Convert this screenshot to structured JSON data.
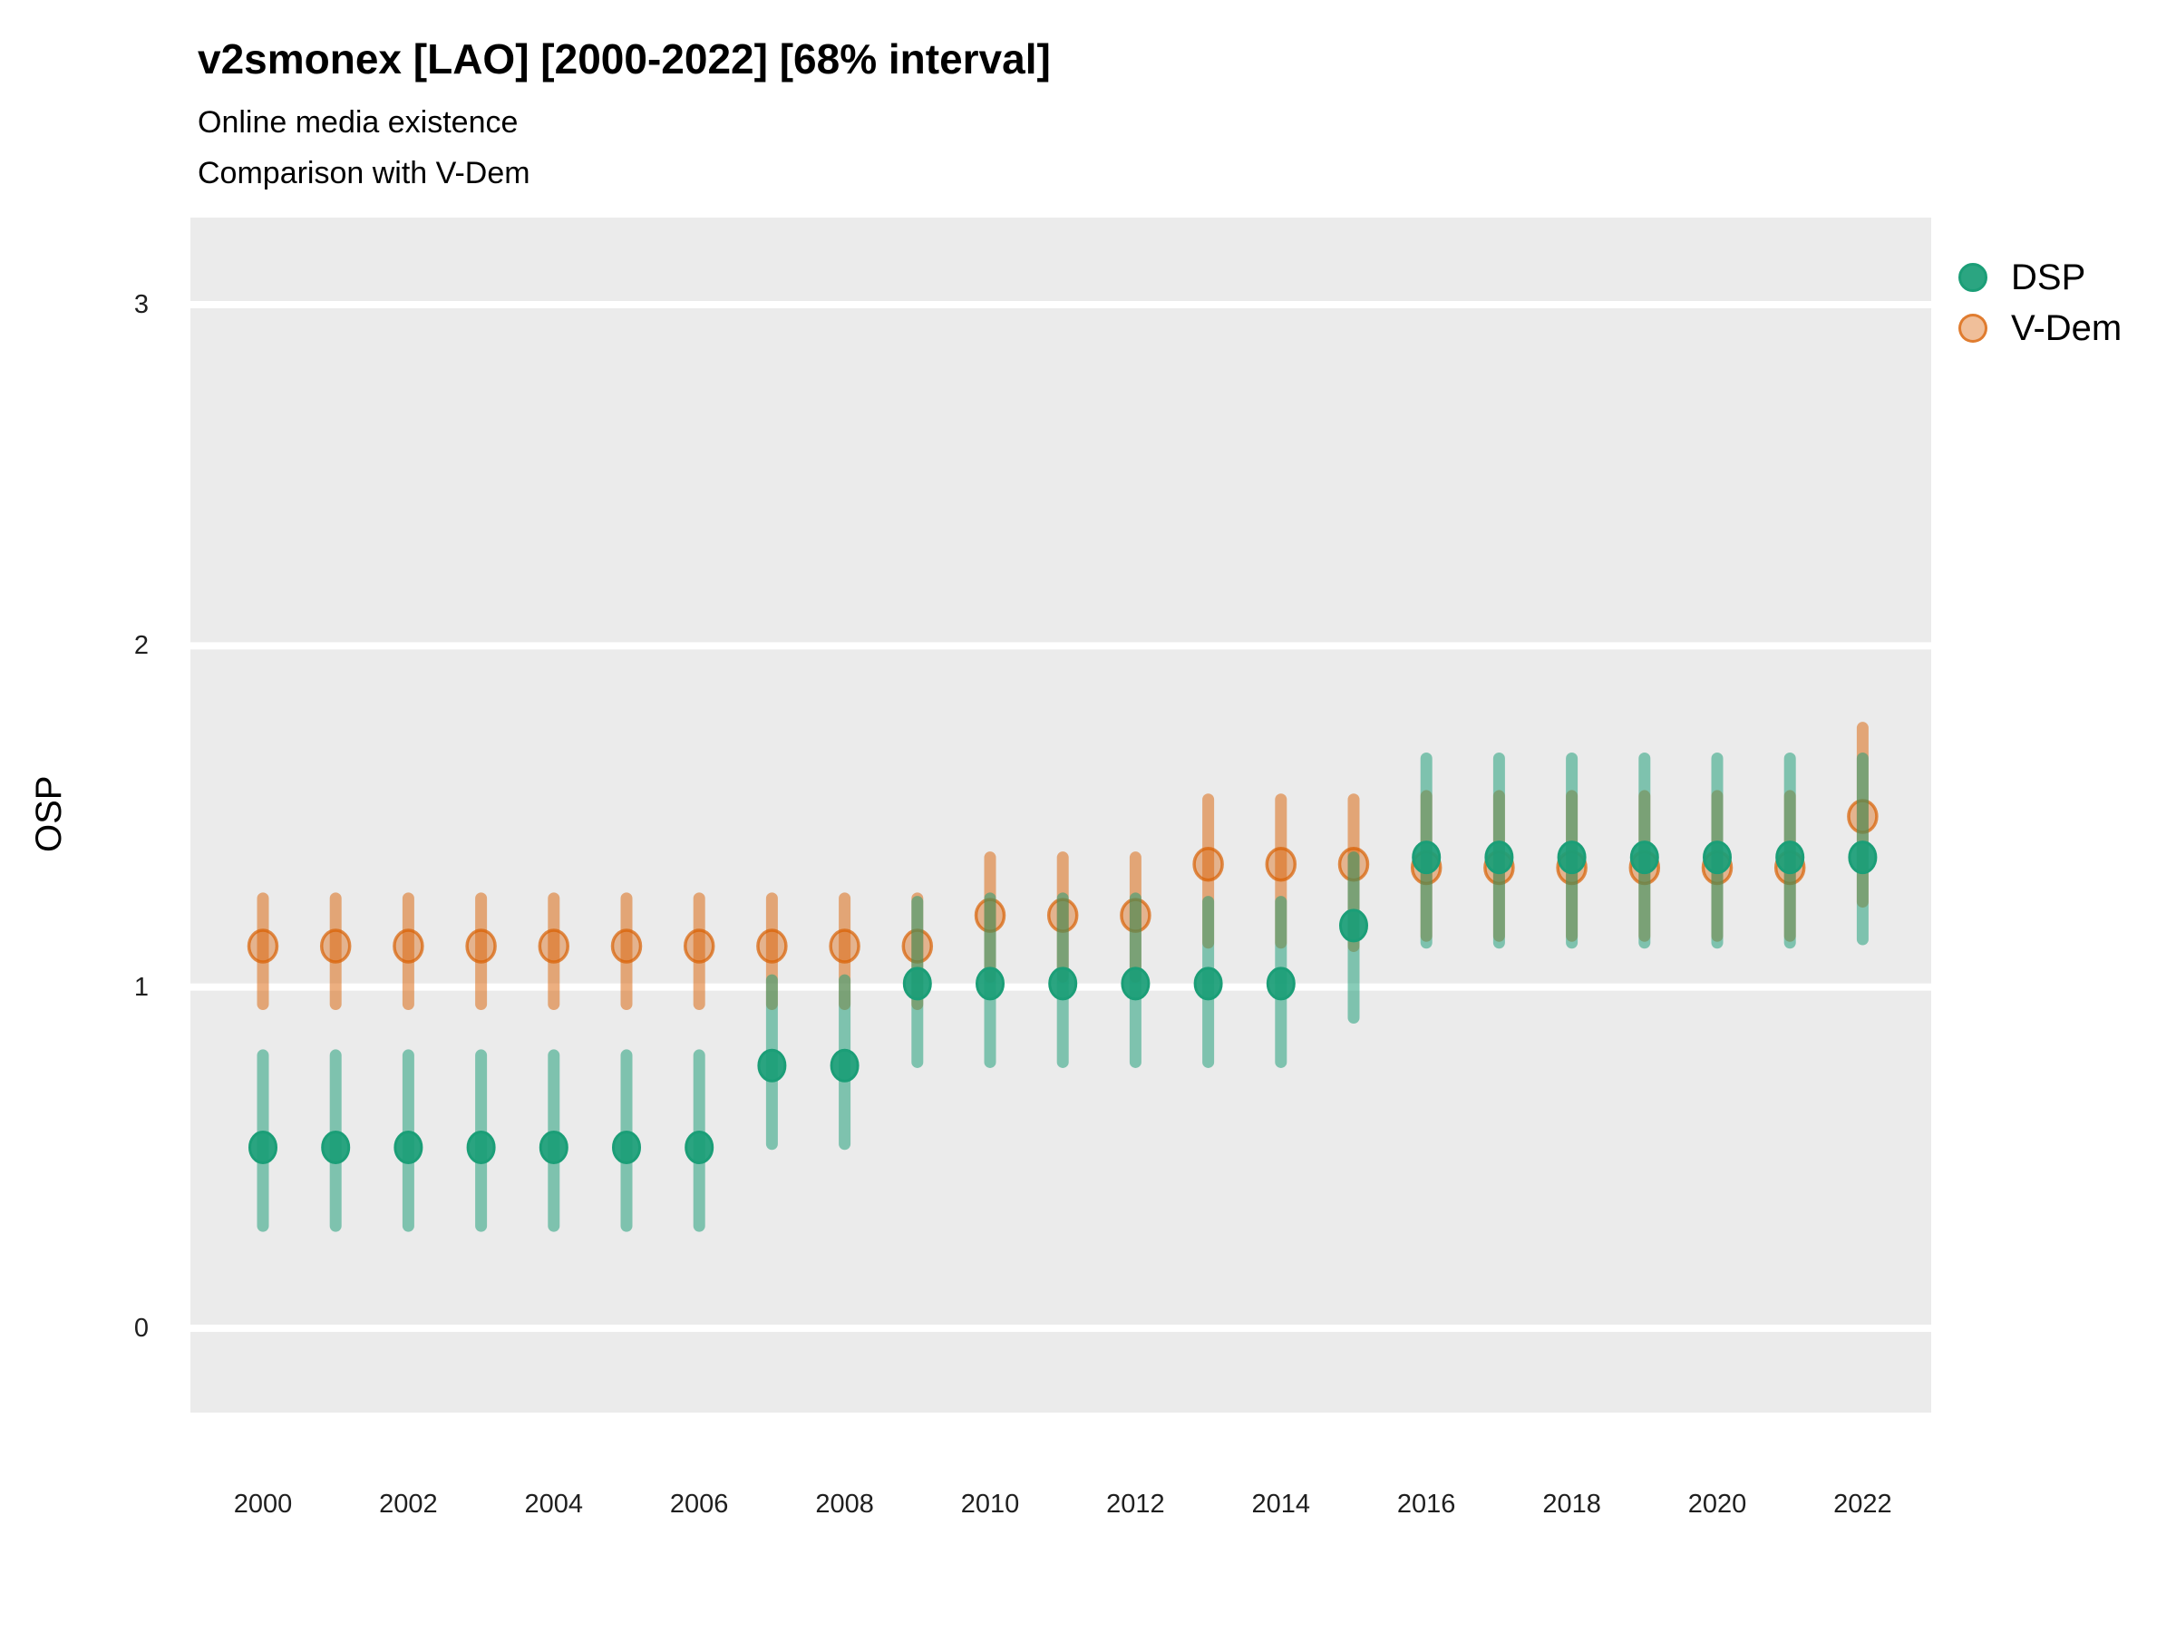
{
  "chart_data": {
    "type": "scatter",
    "variant": "pointrange-errorbar",
    "title": "v2smonex [LAO] [2000-2022] [68% interval]",
    "subtitle1": "Online media existence",
    "subtitle2": "Comparison with V-Dem",
    "xlabel": "",
    "ylabel": "OSP",
    "interval": "68%",
    "country": "LAO",
    "x": [
      2000,
      2001,
      2002,
      2003,
      2004,
      2005,
      2006,
      2007,
      2008,
      2009,
      2010,
      2011,
      2012,
      2013,
      2014,
      2015,
      2016,
      2017,
      2018,
      2019,
      2020,
      2021,
      2022
    ],
    "series": [
      {
        "name": "DSP",
        "color": "#1b9e77",
        "values": [
          0.53,
          0.53,
          0.53,
          0.53,
          0.53,
          0.53,
          0.53,
          0.77,
          0.77,
          1.01,
          1.01,
          1.01,
          1.01,
          1.01,
          1.01,
          1.18,
          1.38,
          1.38,
          1.38,
          1.38,
          1.38,
          1.38,
          1.38
        ],
        "lower": [
          0.3,
          0.3,
          0.3,
          0.3,
          0.3,
          0.3,
          0.3,
          0.54,
          0.54,
          0.78,
          0.78,
          0.78,
          0.78,
          0.78,
          0.78,
          0.91,
          1.13,
          1.13,
          1.13,
          1.13,
          1.13,
          1.13,
          1.14
        ],
        "upper": [
          0.8,
          0.8,
          0.8,
          0.8,
          0.8,
          0.8,
          0.8,
          1.02,
          1.02,
          1.25,
          1.26,
          1.26,
          1.26,
          1.25,
          1.25,
          1.38,
          1.67,
          1.67,
          1.67,
          1.67,
          1.67,
          1.67,
          1.67
        ]
      },
      {
        "name": "V-Dem",
        "color": "#d95f02",
        "values": [
          1.12,
          1.12,
          1.12,
          1.12,
          1.12,
          1.12,
          1.12,
          1.12,
          1.12,
          1.12,
          1.21,
          1.21,
          1.21,
          1.36,
          1.36,
          1.36,
          1.35,
          1.35,
          1.35,
          1.35,
          1.35,
          1.35,
          1.5
        ],
        "lower": [
          0.95,
          0.95,
          0.95,
          0.95,
          0.95,
          0.95,
          0.95,
          0.95,
          0.95,
          0.95,
          1.03,
          1.03,
          1.03,
          1.13,
          1.13,
          1.12,
          1.15,
          1.15,
          1.15,
          1.15,
          1.15,
          1.15,
          1.25
        ],
        "upper": [
          1.26,
          1.26,
          1.26,
          1.26,
          1.26,
          1.26,
          1.26,
          1.26,
          1.26,
          1.26,
          1.38,
          1.38,
          1.38,
          1.55,
          1.55,
          1.55,
          1.56,
          1.56,
          1.56,
          1.56,
          1.56,
          1.56,
          1.76
        ]
      }
    ],
    "ylim": [
      -0.25,
      3.26
    ],
    "y_ticks": [
      0,
      1,
      2,
      3
    ],
    "x_ticks": [
      2000,
      2002,
      2004,
      2006,
      2008,
      2010,
      2012,
      2014,
      2016,
      2018,
      2020,
      2022
    ],
    "grid": "horizontal-major-only",
    "legend_position": "right-top",
    "panel_color": "#ebebeb",
    "gridline_color": "#ffffff"
  }
}
